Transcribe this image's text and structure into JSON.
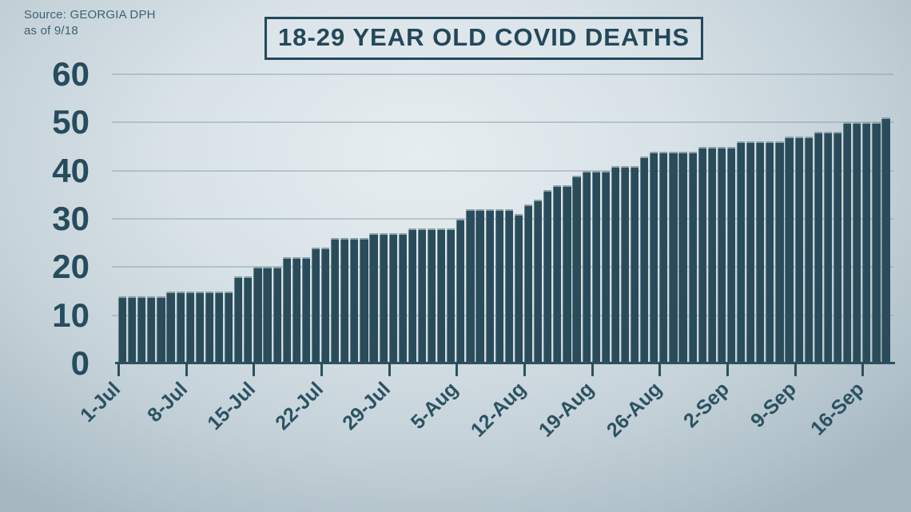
{
  "source": {
    "line1": "Source: GEORGIA DPH",
    "line2": "as of 9/18"
  },
  "title": "18-29 YEAR OLD COVID DEATHS",
  "colors": {
    "bar": "#2a4c5a",
    "title_text": "#24485a",
    "axis": "#2c5060",
    "grid": "rgba(140,162,174,0.5)",
    "background_center": "#e6edf0",
    "background_edge": "#a6b7c0"
  },
  "chart_data": {
    "type": "bar",
    "title": "18-29 YEAR OLD COVID DEATHS",
    "source_note": "Source: GEORGIA DPH as of 9/18",
    "xlabel": "",
    "ylabel": "",
    "ylim": [
      0,
      60
    ],
    "y_ticks": [
      0,
      10,
      20,
      30,
      40,
      50,
      60
    ],
    "grid": true,
    "legend": false,
    "x_tick_labels": [
      "1-Jul",
      "8-Jul",
      "15-Jul",
      "22-Jul",
      "29-Jul",
      "5-Aug",
      "12-Aug",
      "19-Aug",
      "26-Aug",
      "2-Sep",
      "9-Sep",
      "16-Sep"
    ],
    "x": [
      "1-Jul",
      "2-Jul",
      "3-Jul",
      "4-Jul",
      "5-Jul",
      "6-Jul",
      "7-Jul",
      "8-Jul",
      "9-Jul",
      "10-Jul",
      "11-Jul",
      "12-Jul",
      "13-Jul",
      "14-Jul",
      "15-Jul",
      "16-Jul",
      "17-Jul",
      "18-Jul",
      "19-Jul",
      "20-Jul",
      "21-Jul",
      "22-Jul",
      "23-Jul",
      "24-Jul",
      "25-Jul",
      "26-Jul",
      "27-Jul",
      "28-Jul",
      "29-Jul",
      "30-Jul",
      "31-Jul",
      "1-Aug",
      "2-Aug",
      "3-Aug",
      "4-Aug",
      "5-Aug",
      "6-Aug",
      "7-Aug",
      "8-Aug",
      "9-Aug",
      "10-Aug",
      "11-Aug",
      "12-Aug",
      "13-Aug",
      "14-Aug",
      "15-Aug",
      "16-Aug",
      "17-Aug",
      "18-Aug",
      "19-Aug",
      "20-Aug",
      "21-Aug",
      "22-Aug",
      "23-Aug",
      "24-Aug",
      "25-Aug",
      "26-Aug",
      "27-Aug",
      "28-Aug",
      "29-Aug",
      "30-Aug",
      "31-Aug",
      "1-Sep",
      "2-Sep",
      "3-Sep",
      "4-Sep",
      "5-Sep",
      "6-Sep",
      "7-Sep",
      "8-Sep",
      "9-Sep",
      "10-Sep",
      "11-Sep",
      "12-Sep",
      "13-Sep",
      "14-Sep",
      "15-Sep",
      "16-Sep",
      "17-Sep",
      "18-Sep"
    ],
    "values": [
      14,
      14,
      14,
      14,
      14,
      15,
      15,
      15,
      15,
      15,
      15,
      15,
      18,
      18,
      20,
      20,
      20,
      22,
      22,
      22,
      24,
      24,
      26,
      26,
      26,
      26,
      27,
      27,
      27,
      27,
      28,
      28,
      28,
      28,
      28,
      30,
      32,
      32,
      32,
      32,
      32,
      31,
      33,
      34,
      36,
      37,
      37,
      39,
      40,
      40,
      40,
      41,
      41,
      41,
      43,
      44,
      44,
      44,
      44,
      44,
      45,
      45,
      45,
      45,
      46,
      46,
      46,
      46,
      46,
      47,
      47,
      47,
      48,
      48,
      48,
      50,
      50,
      50,
      50,
      51
    ]
  }
}
